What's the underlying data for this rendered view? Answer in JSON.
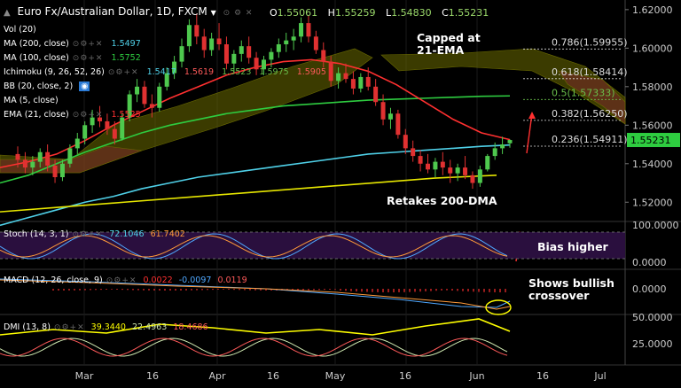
{
  "header": {
    "symbol_title": "Euro Fx/Australian Dollar, 1D, FXCM",
    "ohlc": {
      "O": "1.55061",
      "H": "1.55259",
      "L": "1.54830",
      "C": "1.55231"
    }
  },
  "indicators": {
    "vol": {
      "label": "Vol (20)"
    },
    "ma200": {
      "label": "MA (200, close)",
      "value": "1.5497",
      "color": "#4fd0e8"
    },
    "ma100": {
      "label": "MA (100, close)",
      "value": "1.5752",
      "color": "#2ecc40"
    },
    "ichimoku": {
      "label": "Ichimoku (9, 26, 52, 26)",
      "values": [
        "1.5417",
        "1.5619",
        "1.5523",
        "1.5975",
        "1.5905"
      ]
    },
    "bb": {
      "label": "BB (20, close, 2)"
    },
    "ma5": {
      "label": "MA (5, close)"
    },
    "ema21": {
      "label": "EMA (21, close)",
      "value": "1.5525",
      "color": "#ff3030"
    }
  },
  "annotations": {
    "capped": "Capped at\n21-EMA",
    "retakes": "Retakes 200-DMA",
    "bias": "Bias higher",
    "macd_note": "Shows bullish\ncrossover"
  },
  "fib_levels": [
    {
      "label": "0.786(1.59955)",
      "price": 1.59955,
      "color": "#dddddd"
    },
    {
      "label": "0.618(1.58414)",
      "price": 1.58414,
      "color": "#dddddd"
    },
    {
      "label": "0.5(1.57333)",
      "price": 1.57333,
      "color": "#6abf4b"
    },
    {
      "label": "0.382(1.56250)",
      "price": 1.5625,
      "color": "#dddddd"
    },
    {
      "label": "0.236(1.54911)",
      "price": 1.54911,
      "color": "#dddddd"
    }
  ],
  "price_axis": {
    "ticks": [
      "1.62000",
      "1.60000",
      "1.58000",
      "1.56000",
      "1.54000",
      "1.52000"
    ],
    "last_price": "1.55231"
  },
  "time_axis": {
    "labels": [
      "Mar",
      "16",
      "Apr",
      "16",
      "May",
      "16",
      "Jun",
      "16",
      "Jul"
    ]
  },
  "stoch": {
    "label": "Stoch (14, 3, 1)",
    "k": "72.1046",
    "d": "61.7402",
    "ticks": [
      "100.0000",
      "0.0000"
    ]
  },
  "macd": {
    "label": "MACD (12, 26, close, 9)",
    "values": [
      "0.0022",
      "-0.0097",
      "0.0119"
    ],
    "ticks": [
      "0.0000"
    ]
  },
  "dmi": {
    "label": "DMI (13, 8)",
    "values": [
      "39.3440",
      "22.4963",
      "18.4686"
    ],
    "ticks": [
      "50.0000",
      "25.0000"
    ]
  },
  "chart_data": {
    "type": "candlestick",
    "title": "Euro Fx/Australian Dollar, 1D, FXCM",
    "ylim": [
      1.51,
      1.625
    ],
    "candles": [
      [
        1.545,
        1.549,
        1.538,
        1.542
      ],
      [
        1.542,
        1.546,
        1.535,
        1.538
      ],
      [
        1.538,
        1.544,
        1.534,
        1.541
      ],
      [
        1.541,
        1.548,
        1.538,
        1.546
      ],
      [
        1.546,
        1.55,
        1.536,
        1.539
      ],
      [
        1.539,
        1.542,
        1.53,
        1.533
      ],
      [
        1.533,
        1.542,
        1.531,
        1.54
      ],
      [
        1.54,
        1.55,
        1.538,
        1.548
      ],
      [
        1.548,
        1.556,
        1.545,
        1.553
      ],
      [
        1.553,
        1.562,
        1.55,
        1.56
      ],
      [
        1.56,
        1.568,
        1.556,
        1.564
      ],
      [
        1.564,
        1.57,
        1.559,
        1.562
      ],
      [
        1.562,
        1.566,
        1.555,
        1.558
      ],
      [
        1.558,
        1.562,
        1.55,
        1.553
      ],
      [
        1.553,
        1.566,
        1.552,
        1.564
      ],
      [
        1.564,
        1.578,
        1.562,
        1.576
      ],
      [
        1.576,
        1.584,
        1.572,
        1.58
      ],
      [
        1.58,
        1.583,
        1.569,
        1.571
      ],
      [
        1.571,
        1.576,
        1.564,
        1.569
      ],
      [
        1.569,
        1.582,
        1.567,
        1.58
      ],
      [
        1.58,
        1.59,
        1.578,
        1.587
      ],
      [
        1.587,
        1.596,
        1.584,
        1.593
      ],
      [
        1.593,
        1.605,
        1.59,
        1.601
      ],
      [
        1.601,
        1.615,
        1.598,
        1.612
      ],
      [
        1.612,
        1.618,
        1.602,
        1.606
      ],
      [
        1.606,
        1.61,
        1.595,
        1.599
      ],
      [
        1.599,
        1.608,
        1.596,
        1.605
      ],
      [
        1.605,
        1.613,
        1.599,
        1.602
      ],
      [
        1.602,
        1.606,
        1.589,
        1.592
      ],
      [
        1.592,
        1.599,
        1.587,
        1.597
      ],
      [
        1.597,
        1.604,
        1.593,
        1.601
      ],
      [
        1.601,
        1.606,
        1.592,
        1.595
      ],
      [
        1.595,
        1.598,
        1.586,
        1.589
      ],
      [
        1.589,
        1.596,
        1.586,
        1.594
      ],
      [
        1.594,
        1.6,
        1.59,
        1.598
      ],
      [
        1.598,
        1.605,
        1.595,
        1.602
      ],
      [
        1.602,
        1.608,
        1.598,
        1.604
      ],
      [
        1.604,
        1.61,
        1.599,
        1.606
      ],
      [
        1.606,
        1.616,
        1.603,
        1.613
      ],
      [
        1.613,
        1.617,
        1.603,
        1.606
      ],
      [
        1.606,
        1.609,
        1.597,
        1.599
      ],
      [
        1.599,
        1.603,
        1.59,
        1.593
      ],
      [
        1.593,
        1.596,
        1.58,
        1.583
      ],
      [
        1.583,
        1.59,
        1.579,
        1.587
      ],
      [
        1.587,
        1.592,
        1.582,
        1.584
      ],
      [
        1.584,
        1.588,
        1.576,
        1.579
      ],
      [
        1.579,
        1.587,
        1.577,
        1.585
      ],
      [
        1.585,
        1.59,
        1.578,
        1.58
      ],
      [
        1.58,
        1.584,
        1.57,
        1.572
      ],
      [
        1.572,
        1.576,
        1.56,
        1.563
      ],
      [
        1.563,
        1.569,
        1.558,
        1.566
      ],
      [
        1.566,
        1.568,
        1.553,
        1.555
      ],
      [
        1.555,
        1.558,
        1.545,
        1.548
      ],
      [
        1.548,
        1.552,
        1.541,
        1.544
      ],
      [
        1.544,
        1.547,
        1.536,
        1.54
      ],
      [
        1.54,
        1.545,
        1.535,
        1.537
      ],
      [
        1.537,
        1.543,
        1.533,
        1.541
      ],
      [
        1.541,
        1.546,
        1.534,
        1.538
      ],
      [
        1.538,
        1.542,
        1.53,
        1.535
      ],
      [
        1.535,
        1.54,
        1.531,
        1.538
      ],
      [
        1.538,
        1.544,
        1.532,
        1.534
      ],
      [
        1.534,
        1.536,
        1.527,
        1.53
      ],
      [
        1.53,
        1.539,
        1.528,
        1.537
      ],
      [
        1.537,
        1.545,
        1.536,
        1.544
      ],
      [
        1.544,
        1.551,
        1.542,
        1.548
      ],
      [
        1.548,
        1.554,
        1.545,
        1.55
      ],
      [
        1.5506,
        1.5526,
        1.5483,
        1.5523
      ]
    ],
    "series": [
      {
        "name": "MA (200, close)",
        "color": "#4fd0e8",
        "values": [
          1.508,
          1.512,
          1.516,
          1.52,
          1.523,
          1.527,
          1.53,
          1.533,
          1.535,
          1.537,
          1.539,
          1.541,
          1.543,
          1.545,
          1.546,
          1.547,
          1.548,
          1.549,
          1.5497
        ]
      },
      {
        "name": "MA (100, close)",
        "color": "#2ecc40",
        "values": [
          1.53,
          1.534,
          1.54,
          1.546,
          1.551,
          1.556,
          1.56,
          1.563,
          1.566,
          1.568,
          1.57,
          1.571,
          1.572,
          1.573,
          1.5735,
          1.574,
          1.5745,
          1.575,
          1.5752
        ]
      },
      {
        "name": "EMA (21, close)",
        "color": "#ff3030",
        "values": [
          1.538,
          1.541,
          1.545,
          1.552,
          1.56,
          1.567,
          1.574,
          1.58,
          1.586,
          1.59,
          1.593,
          1.594,
          1.592,
          1.588,
          1.581,
          1.572,
          1.563,
          1.556,
          1.5525
        ]
      },
      {
        "name": "Trendline",
        "color": "#e6e600",
        "values": [
          1.515,
          1.5175,
          1.52,
          1.5225,
          1.525,
          1.5275,
          1.53,
          1.5325,
          1.534
        ]
      }
    ],
    "xlabel": "",
    "ylabel": ""
  }
}
